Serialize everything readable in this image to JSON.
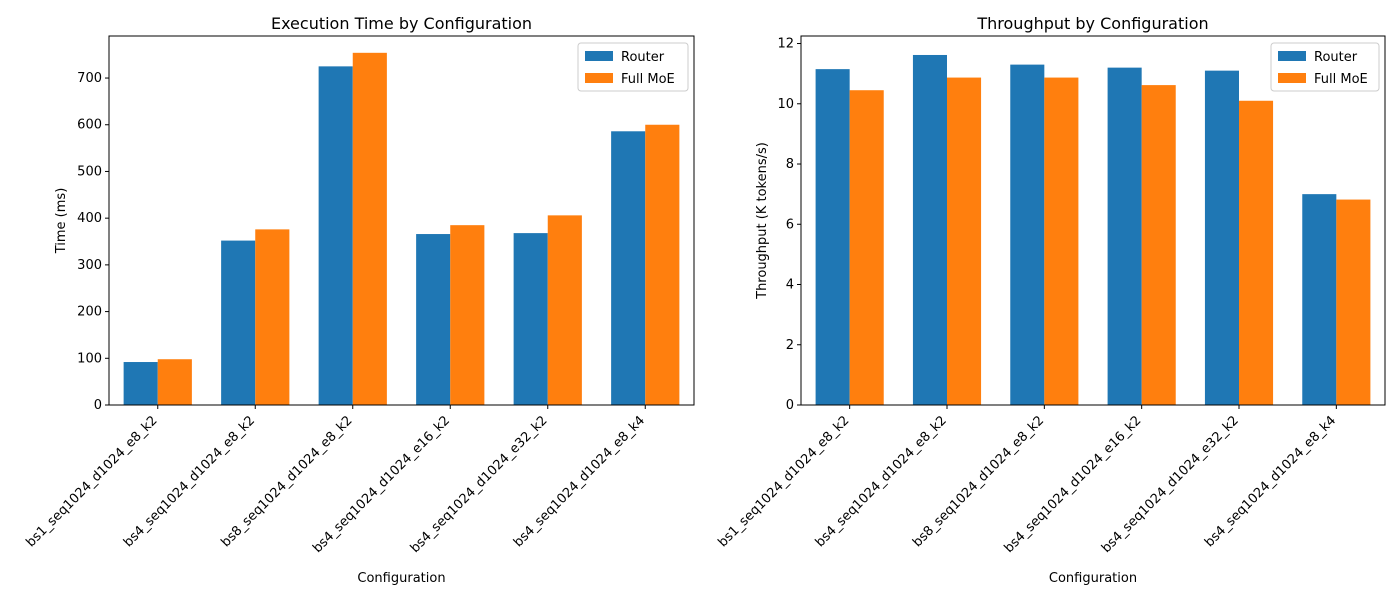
{
  "chart_data": [
    {
      "type": "bar",
      "title": "Execution Time by Configuration",
      "xlabel": "Configuration",
      "ylabel": "Time (ms)",
      "ylim": [
        0,
        790
      ],
      "yticks": [
        0,
        100,
        200,
        300,
        400,
        500,
        600,
        700
      ],
      "legend_position": "top-right",
      "categories": [
        "bs1_seq1024_d1024_e8_k2",
        "bs4_seq1024_d1024_e8_k2",
        "bs8_seq1024_d1024_e8_k2",
        "bs4_seq1024_d1024_e16_k2",
        "bs4_seq1024_d1024_e32_k2",
        "bs4_seq1024_d1024_e8_k4"
      ],
      "series": [
        {
          "name": "Router",
          "color": "#1f77b4",
          "values": [
            92,
            352,
            725,
            366,
            368,
            586
          ]
        },
        {
          "name": "Full MoE",
          "color": "#ff7f0e",
          "values": [
            98,
            376,
            754,
            385,
            406,
            600
          ]
        }
      ]
    },
    {
      "type": "bar",
      "title": "Throughput by Configuration",
      "xlabel": "Configuration",
      "ylabel": "Throughput (K tokens/s)",
      "ylim": [
        0,
        12.25
      ],
      "yticks": [
        0,
        2,
        4,
        6,
        8,
        10,
        12
      ],
      "legend_position": "top-right",
      "categories": [
        "bs1_seq1024_d1024_e8_k2",
        "bs4_seq1024_d1024_e8_k2",
        "bs8_seq1024_d1024_e8_k2",
        "bs4_seq1024_d1024_e16_k2",
        "bs4_seq1024_d1024_e32_k2",
        "bs4_seq1024_d1024_e8_k4"
      ],
      "series": [
        {
          "name": "Router",
          "color": "#1f77b4",
          "values": [
            11.15,
            11.62,
            11.3,
            11.2,
            11.1,
            7.0
          ]
        },
        {
          "name": "Full MoE",
          "color": "#ff7f0e",
          "values": [
            10.45,
            10.87,
            10.87,
            10.62,
            10.1,
            6.82
          ]
        }
      ]
    }
  ]
}
